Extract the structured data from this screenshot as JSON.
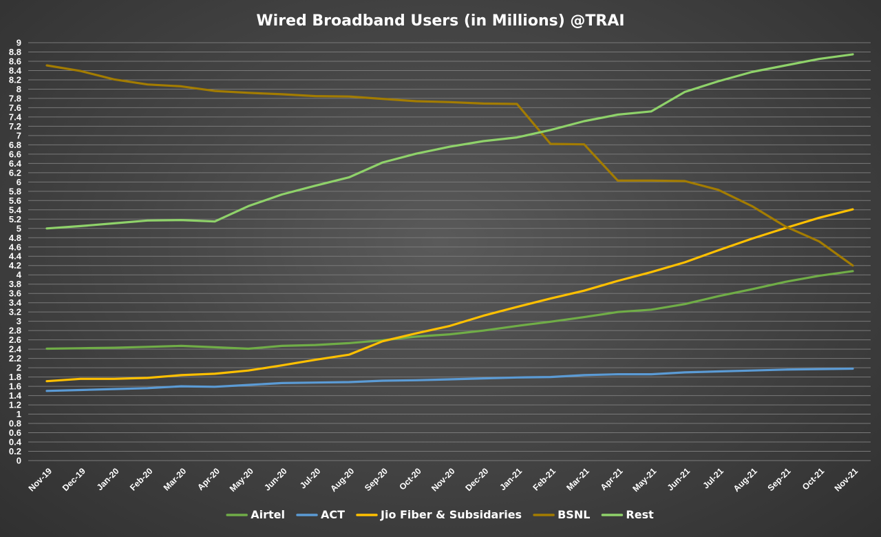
{
  "chart_data": {
    "type": "line",
    "title": "Wired Broadband Users (in Millions) @TRAI",
    "xlabel": "",
    "ylabel": "",
    "ylim": [
      0,
      9
    ],
    "ytick_step": 0.2,
    "yticks": [
      "0",
      "0.2",
      "0.4",
      "0.6",
      "0.8",
      "1",
      "1.2",
      "1.4",
      "1.6",
      "1.8",
      "2",
      "2.2",
      "2.4",
      "2.6",
      "2.8",
      "3",
      "3.2",
      "3.4",
      "3.6",
      "3.8",
      "4",
      "4.2",
      "4.4",
      "4.6",
      "4.8",
      "5",
      "5.2",
      "5.4",
      "5.6",
      "5.8",
      "6",
      "6.2",
      "6.4",
      "6.6",
      "6.8",
      "7",
      "7.2",
      "7.4",
      "7.6",
      "7.8",
      "8",
      "8.2",
      "8.4",
      "8.6",
      "8.8",
      "9"
    ],
    "grid": true,
    "legend_position": "bottom",
    "categories": [
      "Nov-19",
      "Dec-19",
      "Jan-20",
      "Feb-20",
      "Mar-20",
      "Apr-20",
      "May-20",
      "Jun-20",
      "Jul-20",
      "Aug-20",
      "Sep-20",
      "Oct-20",
      "Nov-20",
      "Dec-20",
      "Jan-21",
      "Feb-21",
      "Mar-21",
      "Apr-21",
      "May-21",
      "Jun-21",
      "Jul-21",
      "Aug-21",
      "Sep-21",
      "Oct-21",
      "Nov-21"
    ],
    "series": [
      {
        "name": "Airtel",
        "color": "#70ad47",
        "values": [
          2.41,
          2.42,
          2.43,
          2.45,
          2.47,
          2.44,
          2.41,
          2.47,
          2.49,
          2.53,
          2.59,
          2.67,
          2.72,
          2.8,
          2.9,
          2.99,
          3.09,
          3.2,
          3.25,
          3.37,
          3.54,
          3.69,
          3.85,
          3.98,
          4.08
        ]
      },
      {
        "name": "ACT",
        "color": "#5b9bd5",
        "values": [
          1.5,
          1.52,
          1.54,
          1.56,
          1.6,
          1.59,
          1.63,
          1.67,
          1.68,
          1.69,
          1.72,
          1.73,
          1.75,
          1.77,
          1.79,
          1.8,
          1.84,
          1.86,
          1.86,
          1.9,
          1.92,
          1.94,
          1.96,
          1.97,
          1.98
        ]
      },
      {
        "name": "Jio Fiber & Subsidaries",
        "color": "#ffc000",
        "values": [
          1.71,
          1.76,
          1.76,
          1.78,
          1.84,
          1.87,
          1.94,
          2.05,
          2.17,
          2.28,
          2.57,
          2.74,
          2.9,
          3.12,
          3.31,
          3.49,
          3.66,
          3.87,
          4.06,
          4.27,
          4.53,
          4.78,
          5.01,
          5.23,
          5.41
        ]
      },
      {
        "name": "BSNL",
        "color": "#a37c00",
        "values": [
          8.51,
          8.39,
          8.21,
          8.1,
          8.06,
          7.96,
          7.92,
          7.89,
          7.85,
          7.84,
          7.79,
          7.74,
          7.72,
          7.69,
          7.68,
          6.82,
          6.81,
          6.03,
          6.03,
          6.02,
          5.83,
          5.48,
          5.04,
          4.72,
          4.2
        ]
      },
      {
        "name": "Rest",
        "color": "#8fd26a",
        "values": [
          5.0,
          5.05,
          5.11,
          5.17,
          5.18,
          5.15,
          5.48,
          5.73,
          5.92,
          6.1,
          6.42,
          6.61,
          6.76,
          6.88,
          6.96,
          7.12,
          7.31,
          7.45,
          7.52,
          7.94,
          8.17,
          8.37,
          8.51,
          8.65,
          8.75
        ]
      }
    ]
  }
}
